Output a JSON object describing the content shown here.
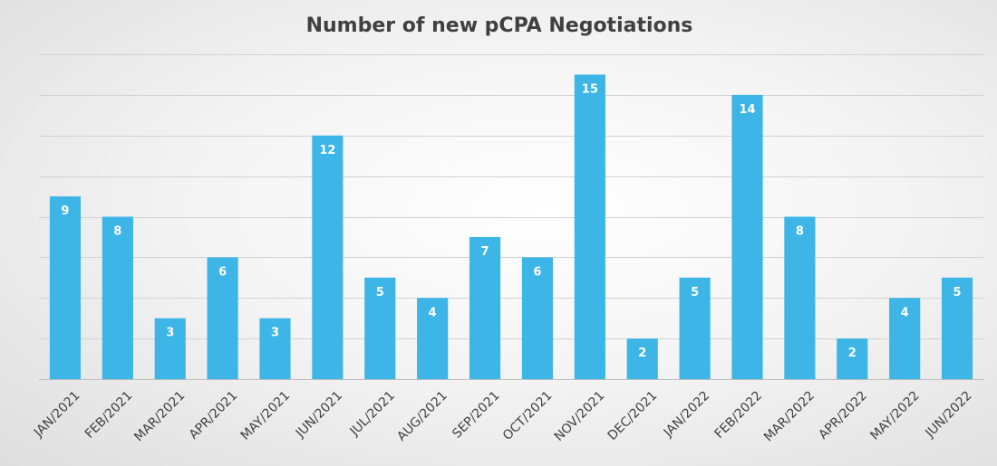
{
  "chart_data": {
    "type": "bar",
    "title": "Number of new pCPA Negotiations",
    "xlabel": "",
    "ylabel": "",
    "categories": [
      "JAN/2021",
      "FEB/2021",
      "MAR/2021",
      "APR/2021",
      "MAY/2021",
      "JUN/2021",
      "JUL/2021",
      "AUG/2021",
      "SEP/2021",
      "OCT/2021",
      "NOV/2021",
      "DEC/2021",
      "JAN/2022",
      "FEB/2022",
      "MAR/2022",
      "APR/2022",
      "MAY/2022",
      "JUN/2022"
    ],
    "values": [
      9,
      8,
      3,
      6,
      3,
      12,
      5,
      4,
      7,
      6,
      15,
      2,
      5,
      14,
      8,
      2,
      4,
      5
    ],
    "ylim": [
      0,
      16
    ],
    "grid": true,
    "legend": "none",
    "colors": {
      "bar": "#3db5e6",
      "title": "#404040",
      "data_label": "#ffffff"
    }
  }
}
